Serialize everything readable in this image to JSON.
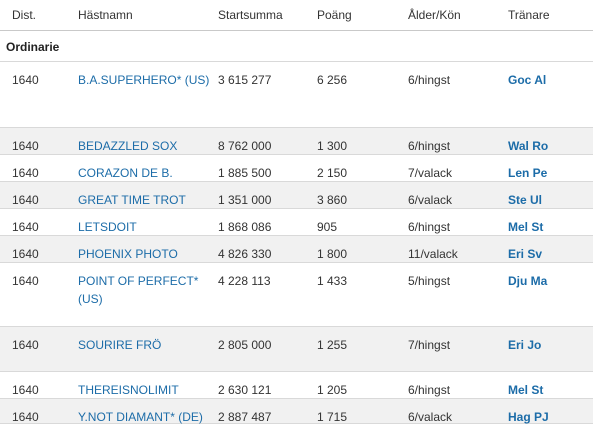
{
  "headers": {
    "dist": "Dist.",
    "name": "Hästnamn",
    "sum": "Startsumma",
    "points": "Poäng",
    "age_sex": "Ålder/Kön",
    "trainer": "Tränare"
  },
  "section": "Ordinarie",
  "rows": [
    {
      "dist": "1640",
      "name": "B.A.SUPERHERO* (US)",
      "sum": "3 615 277",
      "points": "6 256",
      "age_sex": "6/hingst",
      "trainer": "Goc Al"
    },
    {
      "dist": "1640",
      "name": "BEDAZZLED SOX",
      "sum": "8 762 000",
      "points": "1 300",
      "age_sex": "6/hingst",
      "trainer": "Wal Ro"
    },
    {
      "dist": "1640",
      "name": "CORAZON DE B.",
      "sum": "1 885 500",
      "points": "2 150",
      "age_sex": "7/valack",
      "trainer": "Len Pe"
    },
    {
      "dist": "1640",
      "name": "GREAT TIME TROT",
      "sum": "1 351 000",
      "points": "3 860",
      "age_sex": "6/valack",
      "trainer": "Ste Ul"
    },
    {
      "dist": "1640",
      "name": "LETSDOIT",
      "sum": "1 868 086",
      "points": "905",
      "age_sex": "6/hingst",
      "trainer": "Mel St"
    },
    {
      "dist": "1640",
      "name": "PHOENIX PHOTO",
      "sum": "4 826 330",
      "points": "1 800",
      "age_sex": "11/valack",
      "trainer": "Eri Sv"
    },
    {
      "dist": "1640",
      "name": "POINT OF PERFECT* (US)",
      "sum": "4 228 113",
      "points": "1 433",
      "age_sex": "5/hingst",
      "trainer": "Dju Ma"
    },
    {
      "dist": "1640",
      "name": "SOURIRE FRÖ",
      "sum": "2 805 000",
      "points": "1 255",
      "age_sex": "7/hingst",
      "trainer": "Eri Jo"
    },
    {
      "dist": "1640",
      "name": "THEREISNOLIMIT",
      "sum": "2 630 121",
      "points": "1 205",
      "age_sex": "6/hingst",
      "trainer": "Mel St"
    },
    {
      "dist": "1640",
      "name": "Y.NOT DIAMANT* (DE)",
      "sum": "2 887 487",
      "points": "1 715",
      "age_sex": "6/valack",
      "trainer": "Hag PJ"
    }
  ],
  "colors": {
    "link": "#1c6ca8",
    "alt_row": "#f1f1f1",
    "border": "#d9d9d9"
  }
}
